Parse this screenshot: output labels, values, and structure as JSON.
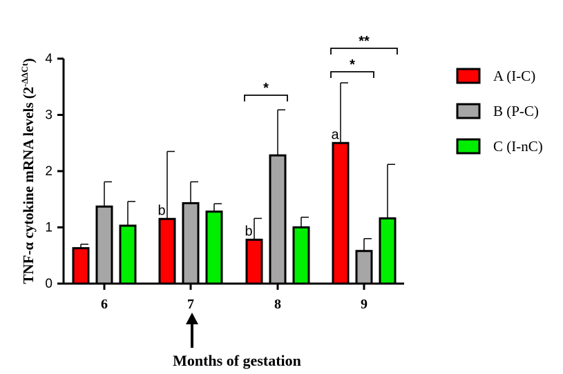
{
  "chart_data": {
    "type": "bar",
    "xlabel": "Months of gestation",
    "ylabel_main": "TNF-α cytokine mRNA levels (2",
    "ylabel_sup": "-ΔΔCt",
    "ylabel_close": ")",
    "categories": [
      "6",
      "7",
      "8",
      "9"
    ],
    "ylim": [
      0,
      4
    ],
    "yticks": [
      "0",
      "1",
      "2",
      "3",
      "4"
    ],
    "grid": false,
    "legend_position": "right",
    "series": [
      {
        "name": "A (I-C)",
        "color": "#ff0000",
        "values": [
          0.63,
          1.15,
          0.78,
          2.5
        ],
        "errors": [
          0.07,
          1.2,
          0.38,
          1.07
        ]
      },
      {
        "name": "B (P-C)",
        "color": "#a6a6a6",
        "values": [
          1.37,
          1.43,
          2.28,
          0.58
        ],
        "errors": [
          0.44,
          0.38,
          0.81,
          0.22
        ]
      },
      {
        "name": "C (I-nC)",
        "color": "#00ee00",
        "values": [
          1.03,
          1.28,
          1.0,
          1.16
        ],
        "errors": [
          0.43,
          0.14,
          0.18,
          0.96
        ]
      }
    ],
    "letter_annotations": [
      {
        "category": "7",
        "series": "A (I-C)",
        "text": "b"
      },
      {
        "category": "8",
        "series": "A (I-C)",
        "text": "b"
      },
      {
        "category": "9",
        "series": "A (I-C)",
        "text": "a"
      }
    ],
    "significance_brackets": [
      {
        "category": "8",
        "from": "A (I-C)",
        "to": "B (P-C)",
        "text": "*"
      },
      {
        "category": "9",
        "from": "A (I-C)",
        "to": "B (P-C)",
        "text": "*"
      },
      {
        "category": "9",
        "from": "A (I-C)",
        "to": "C (I-nC)",
        "text": "**"
      }
    ],
    "arrow_category": "7"
  }
}
